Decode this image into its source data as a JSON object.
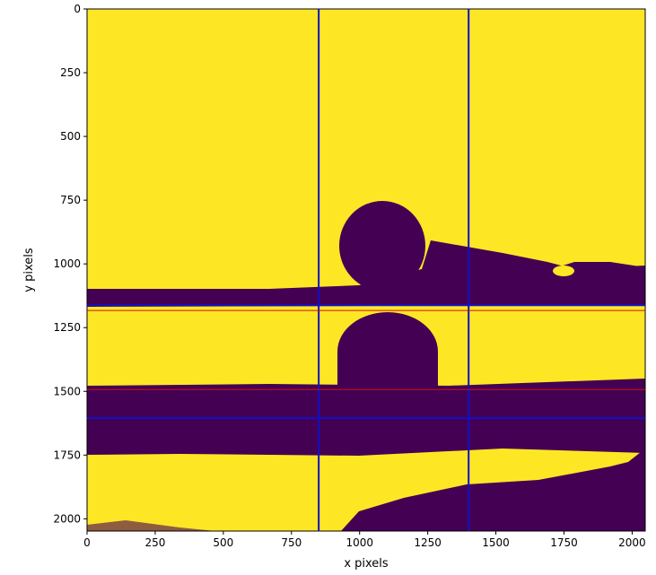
{
  "chart_data": {
    "type": "image",
    "xlabel": "x pixels",
    "ylabel": "y pixels",
    "xlim": [
      0,
      2048
    ],
    "ylim": [
      2048,
      0
    ],
    "xticks": [
      0,
      250,
      500,
      750,
      1000,
      1250,
      1500,
      1750,
      2000
    ],
    "yticks": [
      0,
      250,
      500,
      750,
      1000,
      1250,
      1500,
      1750,
      2000
    ],
    "vlines": [
      {
        "x": 850,
        "color": "#1010c8"
      },
      {
        "x": 1400,
        "color": "#1010c8"
      }
    ],
    "hlines": [
      {
        "y": 1162,
        "color": "#1010c8"
      },
      {
        "y": 1183,
        "color": "#d01010"
      },
      {
        "y": 1493,
        "color": "#d01010"
      },
      {
        "y": 1605,
        "color": "#1010c8"
      }
    ]
  }
}
